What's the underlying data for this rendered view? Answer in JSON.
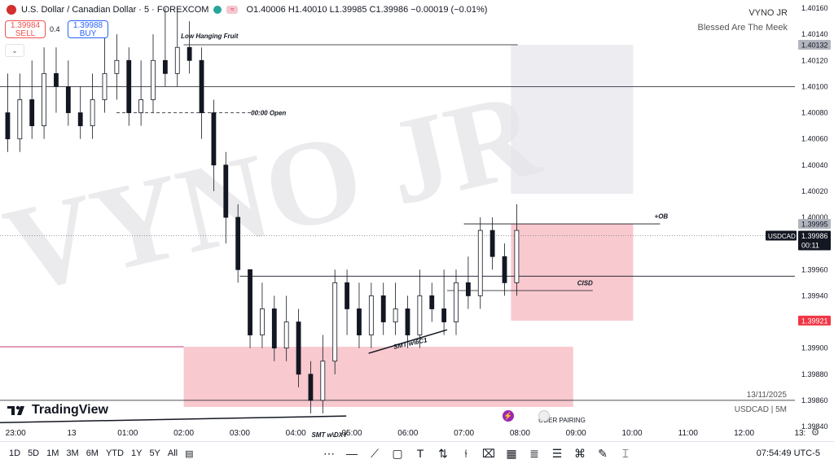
{
  "header": {
    "symbol_title": "U.S. Dollar / Canadian Dollar · 5 · FOREXCOM",
    "ohlc": "O1.40006 H1.40010 L1.39985 C1.39986 −0.00019 (−0.01%)",
    "sell_price": "1.39984",
    "sell_label": "SELL",
    "spread": "0.4",
    "buy_price": "1.39988",
    "buy_label": "BUY"
  },
  "brand": {
    "name": "VYNO JR",
    "tagline": "Blessed Are The Meek",
    "watermark": "VYNO JR"
  },
  "footer_info": {
    "date": "13/11/2025",
    "symbol_tf": "USDCAD | 5M"
  },
  "logo_text": "TradingView",
  "bottom_bar": {
    "timeframes": [
      "1D",
      "5D",
      "1M",
      "3M",
      "6M",
      "YTD",
      "1Y",
      "5Y",
      "All"
    ],
    "clock": "07:54:49 UTC-5"
  },
  "colors": {
    "up": "#131722",
    "down": "#131722",
    "zone": "#f8c9cf",
    "grey_zone": "#ececf1",
    "label_red": "#f23645",
    "axis_grey": "#b2b5be"
  },
  "annotations": {
    "low_hanging_fruit": "Low Hanging Fruit",
    "open_line": "00:00 Open",
    "ob": "+OB",
    "cisd": "CISD",
    "smt_6c1": "SMT w\\6C1",
    "smt_dxy": "SMT w\\DXY",
    "oder_pairing": "ODER PAIRING"
  },
  "chart_data": {
    "type": "candlestick",
    "title": "U.S. Dollar / Canadian Dollar · 5 · FOREXCOM",
    "ylim": [
      1.39845,
      1.40165
    ],
    "y_ticks": [
      "1.40160",
      "1.40140",
      "1.40132",
      "1.40120",
      "1.40100",
      "1.40080",
      "1.40060",
      "1.40040",
      "1.40020",
      "1.40000",
      "1.39995",
      "1.39986",
      "1.39960",
      "1.39940",
      "1.39921",
      "1.39900",
      "1.39880",
      "1.39860",
      "1.39840"
    ],
    "y_tick_values": [
      1.4016,
      1.4014,
      1.40132,
      1.4012,
      1.401,
      1.4008,
      1.4006,
      1.4004,
      1.4002,
      1.4,
      1.39995,
      1.39986,
      1.3996,
      1.3994,
      1.39921,
      1.399,
      1.3988,
      1.3986,
      1.3984
    ],
    "x_ticks": [
      "23:00",
      "13",
      "01:00",
      "02:00",
      "03:00",
      "04:00",
      "05:00",
      "06:00",
      "07:00",
      "08:00",
      "09:00",
      "10:00",
      "11:00",
      "12:00",
      "13:"
    ],
    "x_tick_hours": [
      -1,
      0,
      1,
      2,
      3,
      4,
      5,
      6,
      7,
      8,
      9,
      10,
      11,
      12,
      13
    ],
    "price_labels": {
      "level_1": "1.40132",
      "level_2": "1.39995",
      "current_symbol": "USDCAD",
      "current_price": "1.39986",
      "countdown": "00:11",
      "level_3": "1.39921"
    },
    "candles_hourly_open_close_high_low": [
      [
        1.4008,
        1.4006,
        1.4011,
        1.4005
      ],
      [
        1.4006,
        1.4009,
        1.4011,
        1.4005
      ],
      [
        1.4009,
        1.4007,
        1.4012,
        1.4006
      ],
      [
        1.4007,
        1.4011,
        1.4013,
        1.4006
      ],
      [
        1.4011,
        1.401,
        1.4013,
        1.4008
      ],
      [
        1.401,
        1.4008,
        1.4012,
        1.4007
      ],
      [
        1.4008,
        1.4007,
        1.401,
        1.4006
      ],
      [
        1.4007,
        1.4009,
        1.4011,
        1.4006
      ],
      [
        1.4009,
        1.4011,
        1.4015,
        1.4008
      ],
      [
        1.4011,
        1.4012,
        1.4014,
        1.4009
      ],
      [
        1.4012,
        1.4008,
        1.4013,
        1.4007
      ],
      [
        1.4008,
        1.4009,
        1.4012,
        1.4007
      ],
      [
        1.4009,
        1.4012,
        1.4014,
        1.4008
      ],
      [
        1.4012,
        1.4011,
        1.4016,
        1.401
      ],
      [
        1.4011,
        1.4013,
        1.4016,
        1.401
      ],
      [
        1.4013,
        1.4012,
        1.4015,
        1.4011
      ],
      [
        1.4012,
        1.4008,
        1.4013,
        1.4006
      ],
      [
        1.4008,
        1.4004,
        1.4009,
        1.4002
      ],
      [
        1.4004,
        1.4,
        1.4005,
        1.3998
      ],
      [
        1.4,
        1.3996,
        1.4001,
        1.3995
      ],
      [
        1.3996,
        1.3991,
        1.3996,
        1.399
      ],
      [
        1.3991,
        1.3993,
        1.3995,
        1.399
      ],
      [
        1.3993,
        1.399,
        1.3994,
        1.3989
      ],
      [
        1.399,
        1.3992,
        1.3994,
        1.3989
      ],
      [
        1.3992,
        1.3988,
        1.3993,
        1.3987
      ],
      [
        1.3988,
        1.3986,
        1.3989,
        1.3985
      ],
      [
        1.3986,
        1.3989,
        1.3991,
        1.3985
      ],
      [
        1.3989,
        1.3995,
        1.3996,
        1.3988
      ],
      [
        1.3995,
        1.3993,
        1.3996,
        1.3991
      ],
      [
        1.3993,
        1.3991,
        1.3995,
        1.399
      ],
      [
        1.3991,
        1.3994,
        1.3995,
        1.399
      ],
      [
        1.3994,
        1.3992,
        1.3995,
        1.3991
      ],
      [
        1.3992,
        1.3993,
        1.3995,
        1.3991
      ],
      [
        1.3993,
        1.3991,
        1.3994,
        1.399
      ],
      [
        1.3991,
        1.3994,
        1.3996,
        1.399
      ],
      [
        1.3994,
        1.3993,
        1.3995,
        1.3992
      ],
      [
        1.3993,
        1.3992,
        1.3996,
        1.3991
      ],
      [
        1.3992,
        1.3995,
        1.3996,
        1.3991
      ],
      [
        1.3995,
        1.3994,
        1.3997,
        1.3993
      ],
      [
        1.3994,
        1.3999,
        1.4,
        1.3993
      ],
      [
        1.3999,
        1.3997,
        1.4,
        1.3996
      ],
      [
        1.3997,
        1.3995,
        1.3998,
        1.3994
      ],
      [
        1.3995,
        1.3999,
        1.4001,
        1.3994
      ]
    ]
  }
}
